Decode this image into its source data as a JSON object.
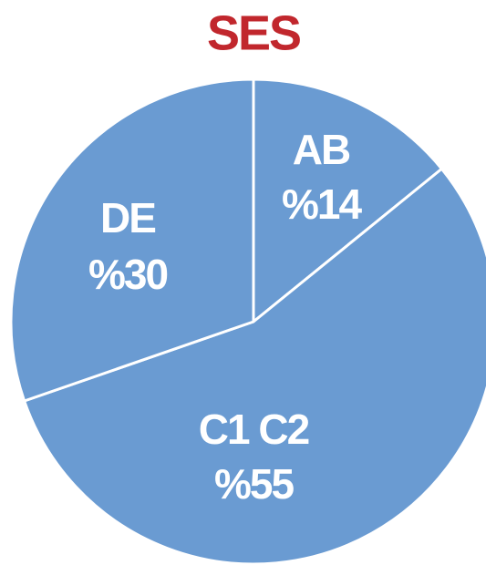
{
  "chart_data": {
    "type": "pie",
    "title": "SES",
    "categories": [
      "AB",
      "C1 C2",
      "DE"
    ],
    "values": [
      14,
      55,
      30
    ],
    "value_labels": [
      "%14",
      "%55",
      "%30"
    ],
    "color": "#6a9bd2",
    "title_color": "#c1272d"
  }
}
